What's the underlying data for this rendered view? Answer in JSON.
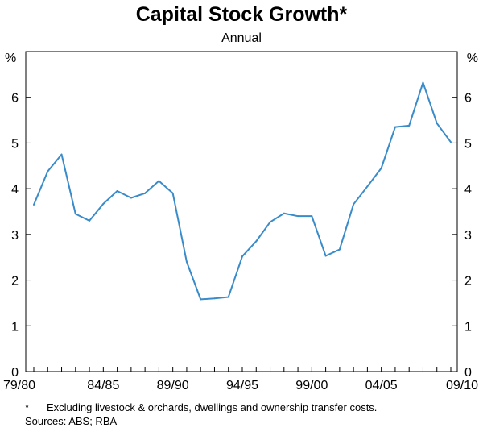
{
  "chart_data": {
    "type": "line",
    "title": "Capital Stock Growth*",
    "subtitle": "Annual",
    "yunit_left": "%",
    "yunit_right": "%",
    "ylim": [
      0,
      7
    ],
    "yticks": [
      0,
      1,
      2,
      3,
      4,
      5,
      6
    ],
    "xticks": [
      "79/80",
      "84/85",
      "89/90",
      "94/95",
      "99/00",
      "04/05",
      "09/10"
    ],
    "grid": false,
    "line_color": "#3a8bc9",
    "series": [
      {
        "x": [
          "79/80",
          "80/81",
          "81/82",
          "82/83",
          "83/84",
          "84/85",
          "85/86",
          "86/87",
          "87/88",
          "88/89",
          "89/90",
          "90/91",
          "91/92",
          "92/93",
          "93/94",
          "94/95",
          "95/96",
          "96/97",
          "97/98",
          "98/99",
          "99/00",
          "00/01",
          "01/02",
          "02/03",
          "03/04",
          "04/05",
          "05/06",
          "06/07",
          "07/08",
          "08/09",
          "09/10"
        ],
        "values": [
          3.65,
          4.38,
          4.75,
          3.45,
          3.3,
          3.67,
          3.95,
          3.8,
          3.9,
          4.17,
          3.9,
          2.4,
          1.58,
          1.6,
          1.63,
          2.52,
          2.85,
          3.27,
          3.46,
          3.4,
          3.4,
          2.53,
          2.67,
          3.66,
          4.05,
          4.45,
          5.35,
          5.38,
          6.32,
          5.43,
          5.02
        ]
      }
    ]
  },
  "footnote": {
    "marker": "*",
    "text": "Excluding livestock & orchards, dwellings and ownership transfer costs."
  },
  "sources": "Sources: ABS; RBA"
}
